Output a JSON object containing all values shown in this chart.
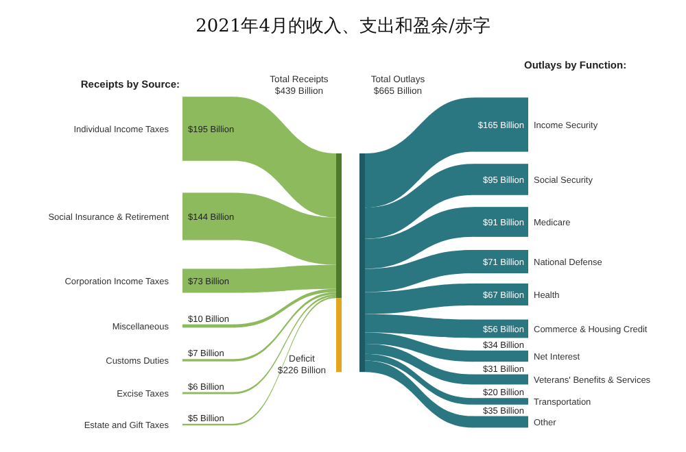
{
  "chart_data": {
    "type": "other",
    "title": "2021年4月的收入、支出和盈余/赤字",
    "categories": [
      "Individual Income Taxes",
      "Social Insurance & Retirement",
      "Corporation Income Taxes",
      "Miscellaneous",
      "Customs Duties",
      "Excise Taxes",
      "Estate and Gift Taxes",
      "Income Security",
      "Social Security",
      "Medicare",
      "National Defense",
      "Health",
      "Commerce & Housing Credit",
      "Net Interest",
      "Veterans' Benefits & Services",
      "Transportation",
      "Other"
    ],
    "series": [
      {
        "name": "Receipts by Source:",
        "color": "#8dba5c",
        "values": [
          195,
          144,
          73,
          10,
          7,
          6,
          5,
          null,
          null,
          null,
          null,
          null,
          null,
          null,
          null,
          null,
          null
        ],
        "value_labels": [
          "$195 Billion",
          "$144 Billion",
          "$73 Billion",
          "$10 Billion",
          "$7 Billion",
          "$6 Billion",
          "$5 Billion",
          null,
          null,
          null,
          null,
          null,
          null,
          null,
          null,
          null,
          null
        ]
      },
      {
        "name": "Outlays by Function:",
        "color": "#2b7781",
        "values": [
          null,
          null,
          null,
          null,
          null,
          null,
          null,
          165,
          95,
          91,
          71,
          67,
          56,
          34,
          31,
          20,
          35
        ],
        "value_labels": [
          null,
          null,
          null,
          null,
          null,
          null,
          null,
          "$165 Billion",
          "$95 Billion",
          "$91 Billion",
          "$71 Billion",
          "$67 Billion",
          "$56 Billion",
          "$34 Billion",
          "$31 Billion",
          "$20 Billion",
          "$35 Billion"
        ]
      }
    ],
    "annotations": [
      "Total Receipts\n$439 Billion",
      "Total Outlays\n$665 Billion",
      "Deficit\n$226 Billion"
    ]
  }
}
